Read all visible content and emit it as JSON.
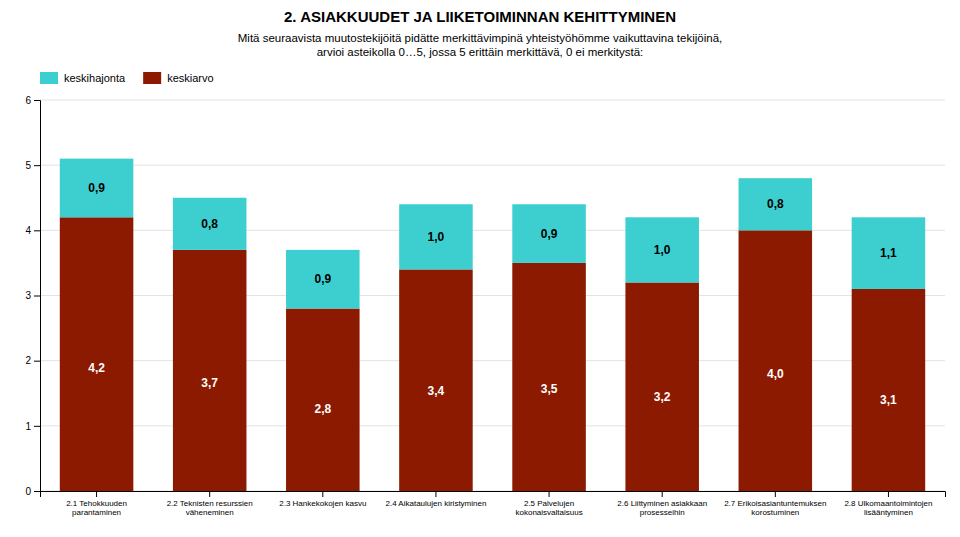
{
  "chart_data": {
    "type": "bar",
    "stacked": true,
    "title": "2. ASIAKKUUDET JA LIIKETOIMINNAN KEHITTYMINEN",
    "subtitle": "Mitä seuraavista muutostekijöitä pidätte merkittävimpinä yhteistyöhömme vaikuttavina tekijöinä,\narvioi asteikolla 0…5, jossa 5 erittäin merkittävä, 0 ei merkitystä:",
    "categories": [
      "2.1 Tehokkuuden\nparantaminen",
      "2.2 Teknisten resurssien\nväheneminen",
      "2.3 Hankekokojen kasvu",
      "2.4 Aikataulujen kiristyminen",
      "2.5 Palvelujen\nkokonaisvaltaisuus",
      "2.6 Liittyminen asiakkaan\nprosesseihin",
      "2.7 Erikoisasiantuntemuksen\nkorostuminen",
      "2.8 Ulkomaantoimintojen\nlisääntyminen"
    ],
    "series": [
      {
        "name": "keskiarvo",
        "color": "#8B1A00",
        "values": [
          4.2,
          3.7,
          2.8,
          3.4,
          3.5,
          3.2,
          4.0,
          3.1
        ],
        "value_labels": [
          "4,2",
          "3,7",
          "2,8",
          "3,4",
          "3,5",
          "3,2",
          "4,0",
          "3,1"
        ]
      },
      {
        "name": "keskihajonta",
        "color": "#3DCFCF",
        "values": [
          0.9,
          0.8,
          0.9,
          1.0,
          0.9,
          1.0,
          0.8,
          1.1
        ],
        "value_labels": [
          "0,9",
          "0,8",
          "0,9",
          "1,0",
          "0,9",
          "1,0",
          "0,8",
          "1,1"
        ]
      }
    ],
    "ylim": [
      0,
      6
    ],
    "yticks": [
      0,
      1,
      2,
      3,
      4,
      5,
      6
    ],
    "grid": true,
    "legend": "upper left",
    "data_labels": true
  }
}
